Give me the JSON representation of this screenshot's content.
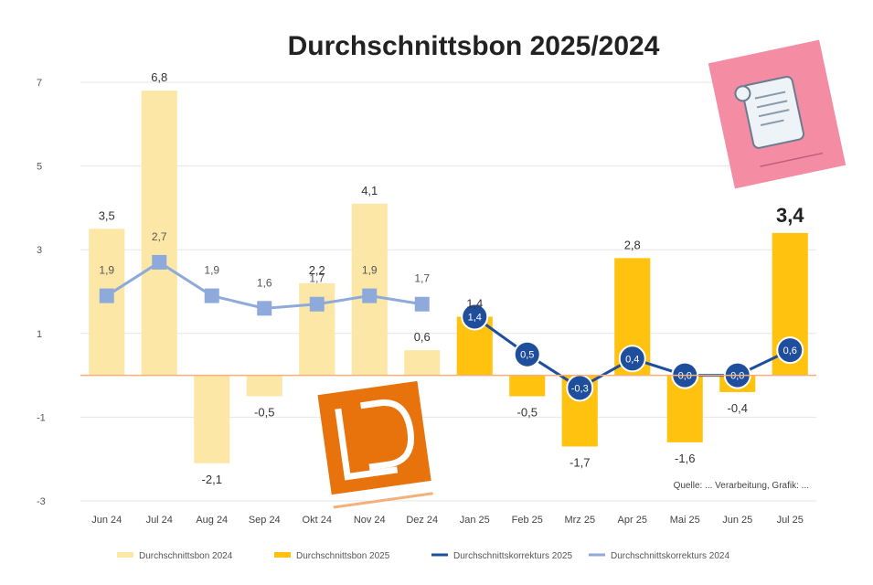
{
  "chart_data": {
    "type": "bar",
    "title": "Durchschnittsbon 2025/2024",
    "categories": [
      "Jun 24",
      "Jul 24",
      "Aug 24",
      "Sep 24",
      "Okt 24",
      "Nov 24",
      "Dez 24",
      "Jan 25",
      "Feb 25",
      "Mrz 25",
      "Apr 25",
      "Mai 25",
      "Jun 25",
      "Jul 25"
    ],
    "ylim": [
      -3,
      7
    ],
    "yticks": [
      -3,
      -1,
      1,
      3,
      5,
      7
    ],
    "grid": true,
    "legend_position": "bottom",
    "series": [
      {
        "name": "Durchschnittsbon 2024",
        "kind": "bar",
        "color": "#fde7a6",
        "values": [
          3.5,
          6.8,
          -2.1,
          -0.5,
          2.2,
          4.1,
          0.6,
          null,
          null,
          null,
          null,
          null,
          null,
          null
        ],
        "labels": [
          "3,5",
          "6,8",
          "-2,1",
          "-0,5",
          "2,2",
          "4,1",
          "0,6",
          "",
          "",
          "",
          "",
          "",
          "",
          ""
        ]
      },
      {
        "name": "Durchschnittsbon 2025",
        "kind": "bar",
        "color": "#ffc20e",
        "values": [
          null,
          null,
          null,
          null,
          null,
          null,
          null,
          1.4,
          -0.5,
          -1.7,
          2.8,
          -1.6,
          -0.4,
          3.4
        ],
        "labels": [
          "",
          "",
          "",
          "",
          "",
          "",
          "",
          "1,4",
          "-0,5",
          "-1,7",
          "2,8",
          "-1,6",
          "-0,4",
          "3,4"
        ]
      },
      {
        "name": "Durchschnittskorrekturs 2025",
        "kind": "line",
        "color": "#1f4e9c",
        "values": [
          null,
          null,
          null,
          null,
          null,
          null,
          null,
          1.4,
          0.5,
          -0.3,
          0.4,
          0.0,
          0.0,
          0.6
        ],
        "labels": [
          "",
          "",
          "",
          "",
          "",
          "",
          "",
          "1,4",
          "0,5",
          "-0,3",
          "0,4",
          "0,0",
          "0,0",
          "0,6"
        ]
      },
      {
        "name": "Durchschnittskorrekturs 2024",
        "kind": "line",
        "color": "#8eaadb",
        "values": [
          1.9,
          2.7,
          1.9,
          1.6,
          1.7,
          1.9,
          1.7,
          null,
          null,
          null,
          null,
          null,
          null,
          null
        ],
        "labels": [
          "1,9",
          "2,7",
          "1,9",
          "1,6",
          "1,7",
          "1,9",
          "1,7",
          "",
          "",
          "",
          "",
          "",
          "",
          ""
        ]
      }
    ],
    "source_note": "Quelle: ... Verarbeitung, Grafik: ..."
  },
  "decor": {
    "logo_letters": "LD",
    "receipt_icon": "receipt-scroll-icon",
    "colors": {
      "bar2024": "#fde7a6",
      "bar2025": "#ffc20e",
      "line2025": "#1f4e9c",
      "line2024": "#8eaadb",
      "logo": "#e8730c",
      "sticker": "#f48ca4"
    }
  }
}
